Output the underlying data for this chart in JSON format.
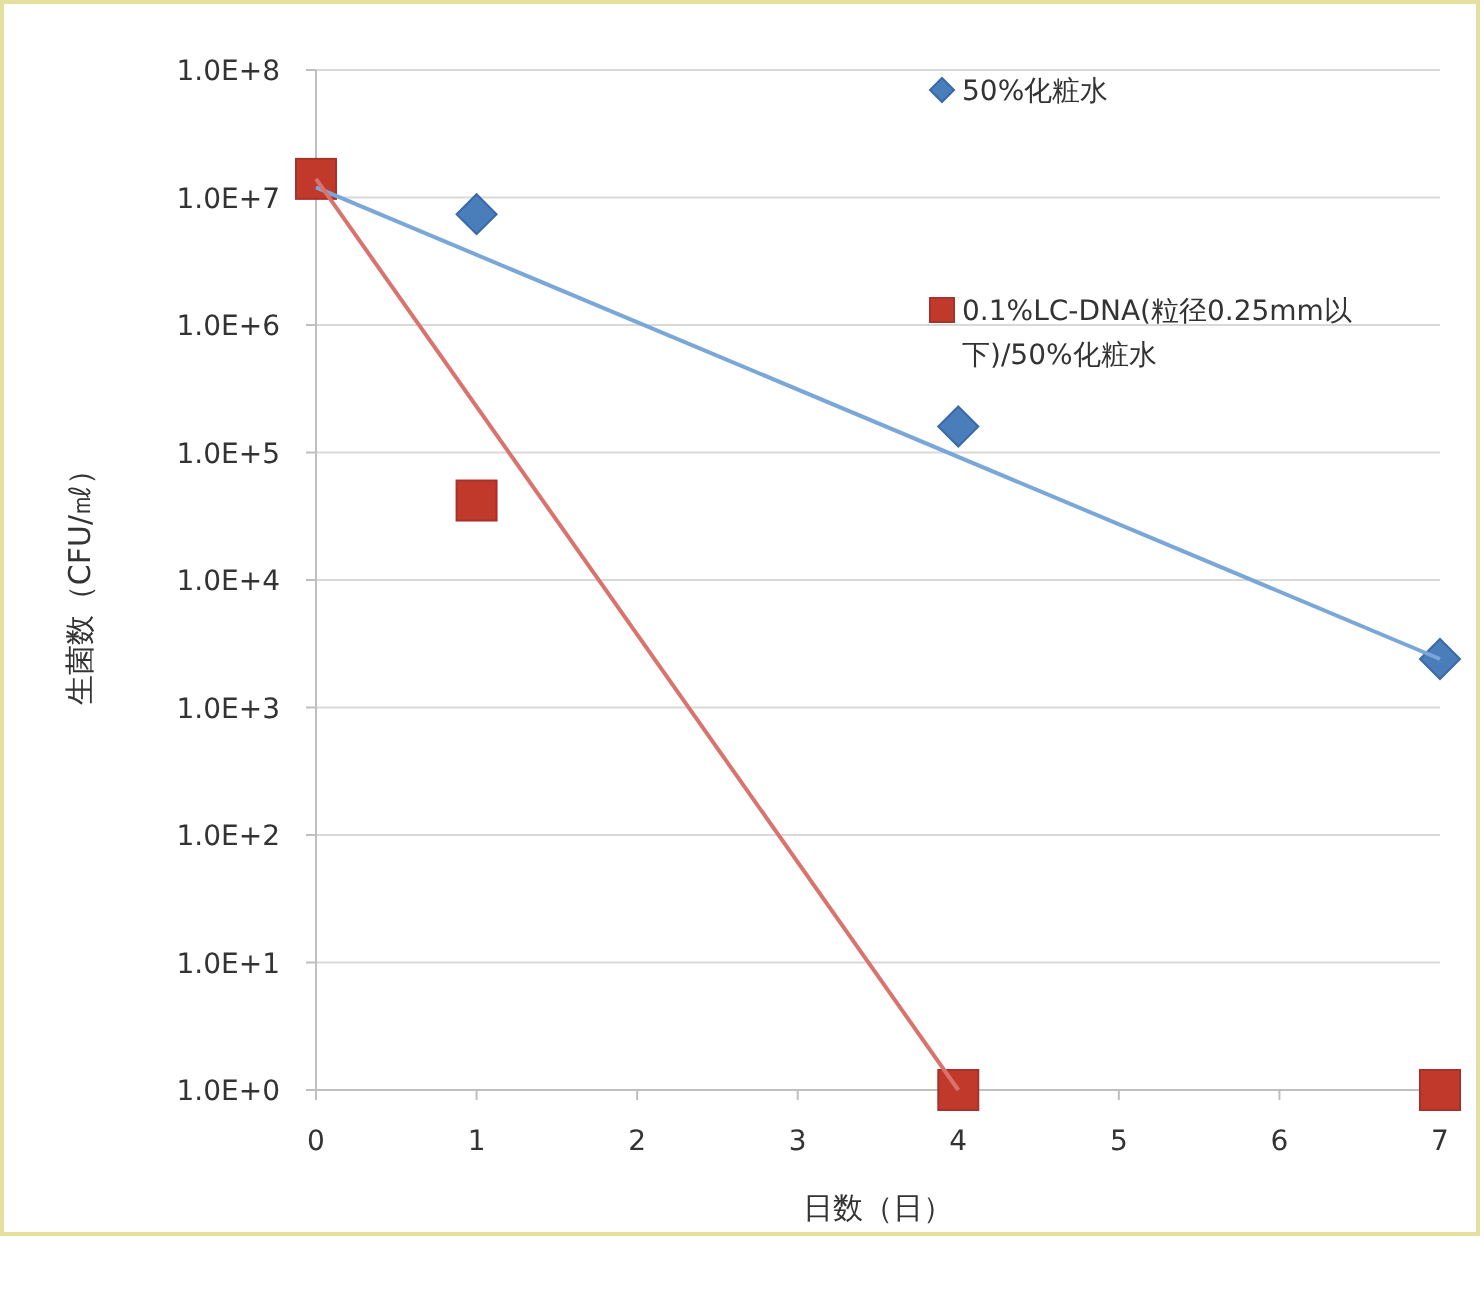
{
  "chart_data": {
    "type": "scatter",
    "xlabel": "日数（日）",
    "ylabel": "生菌数（CFU/㎖）",
    "log": "y",
    "xlim": [
      0,
      7
    ],
    "xticks": [
      0,
      1,
      2,
      3,
      4,
      5,
      6,
      7
    ],
    "ylim": [
      1,
      100000000
    ],
    "yticks": [
      {
        "value": 1,
        "label": "1.0E+0"
      },
      {
        "value": 10,
        "label": "1.0E+1"
      },
      {
        "value": 100,
        "label": "1.0E+2"
      },
      {
        "value": 1000,
        "label": "1.0E+3"
      },
      {
        "value": 10000,
        "label": "1.0E+4"
      },
      {
        "value": 100000,
        "label": "1.0E+5"
      },
      {
        "value": 1000000,
        "label": "1.0E+6"
      },
      {
        "value": 10000000,
        "label": "1.0E+7"
      },
      {
        "value": 100000000,
        "label": "1.0E+8"
      }
    ],
    "grid": "y",
    "legend": "top right",
    "series": [
      {
        "name": "50%化粧水",
        "marker": "diamond",
        "color": "#4a7ebb",
        "x": [
          1,
          4,
          7
        ],
        "values": [
          7400000,
          160000,
          2400
        ]
      },
      {
        "name": "0.1%LC-DNA(粒径0.25mm以下)/50%化粧水",
        "marker": "square",
        "color": "#c0392b",
        "x": [
          0,
          1,
          4,
          7
        ],
        "values": [
          14000000,
          42000,
          1,
          1
        ]
      },
      {
        "type": "line",
        "color": "#7aa7d8",
        "x": [
          0,
          7
        ],
        "values": [
          12000000,
          2400
        ]
      },
      {
        "type": "line",
        "color": "#d9736e",
        "x": [
          0,
          4
        ],
        "values": [
          14000000,
          1
        ]
      }
    ]
  }
}
